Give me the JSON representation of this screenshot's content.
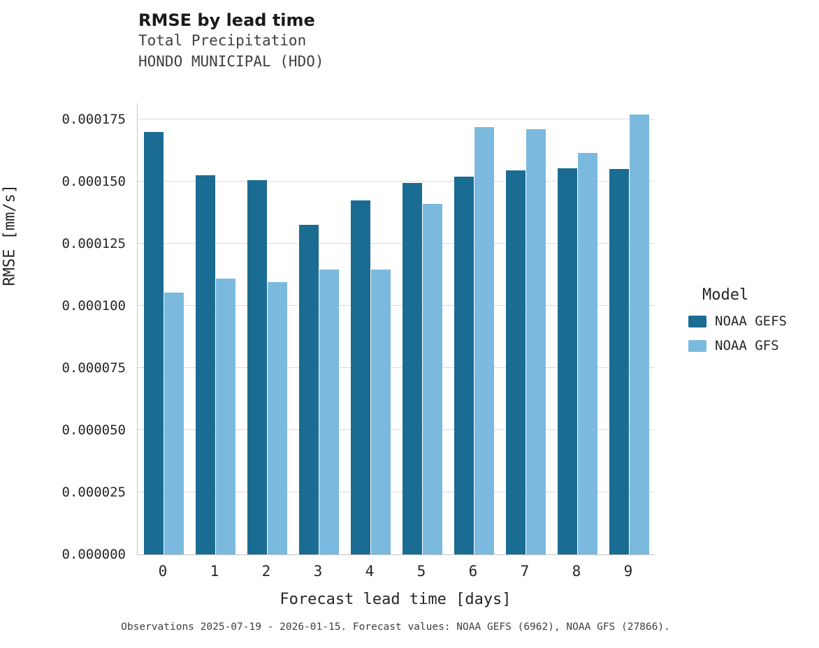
{
  "title": "RMSE by lead time",
  "subtitle1": "Total Precipitation",
  "subtitle2": "HONDO MUNICIPAL (HDO)",
  "caption": "Observations 2025-07-19 - 2026-01-15. Forecast values: NOAA GEFS (6962), NOAA GFS (27866).",
  "legend": {
    "title": "Model",
    "entries": [
      {
        "label": "NOAA GEFS",
        "color": "#1b6c93"
      },
      {
        "label": "NOAA GFS",
        "color": "#7bbade"
      }
    ]
  },
  "chart_data": {
    "type": "bar",
    "title": "RMSE by lead time",
    "subtitle": [
      "Total Precipitation",
      "HONDO MUNICIPAL (HDO)"
    ],
    "xlabel": "Forecast lead time [days]",
    "ylabel": "RMSE [mm/s]",
    "categories": [
      "0",
      "1",
      "2",
      "3",
      "4",
      "5",
      "6",
      "7",
      "8",
      "9"
    ],
    "series": [
      {
        "name": "NOAA GEFS",
        "color": "#1b6c93",
        "values": [
          0.00017,
          0.0001525,
          0.0001505,
          0.0001325,
          0.0001425,
          0.0001495,
          0.000152,
          0.0001545,
          0.0001555,
          0.000155
        ]
      },
      {
        "name": "NOAA GFS",
        "color": "#7bbade",
        "values": [
          0.0001055,
          0.000111,
          0.0001095,
          0.0001145,
          0.0001145,
          0.000141,
          0.000172,
          0.000171,
          0.0001615,
          0.000177
        ]
      }
    ],
    "ylim": [
      0,
      0.0001815
    ],
    "yticks": [
      0.0,
      2.5e-05,
      5e-05,
      7.5e-05,
      0.0001,
      0.000125,
      0.00015,
      0.000175
    ],
    "ytick_labels": [
      "0.000000",
      "0.000025",
      "0.000050",
      "0.000075",
      "0.000100",
      "0.000125",
      "0.000150",
      "0.000175"
    ],
    "grid": "horizontal",
    "legend_position": "right"
  }
}
